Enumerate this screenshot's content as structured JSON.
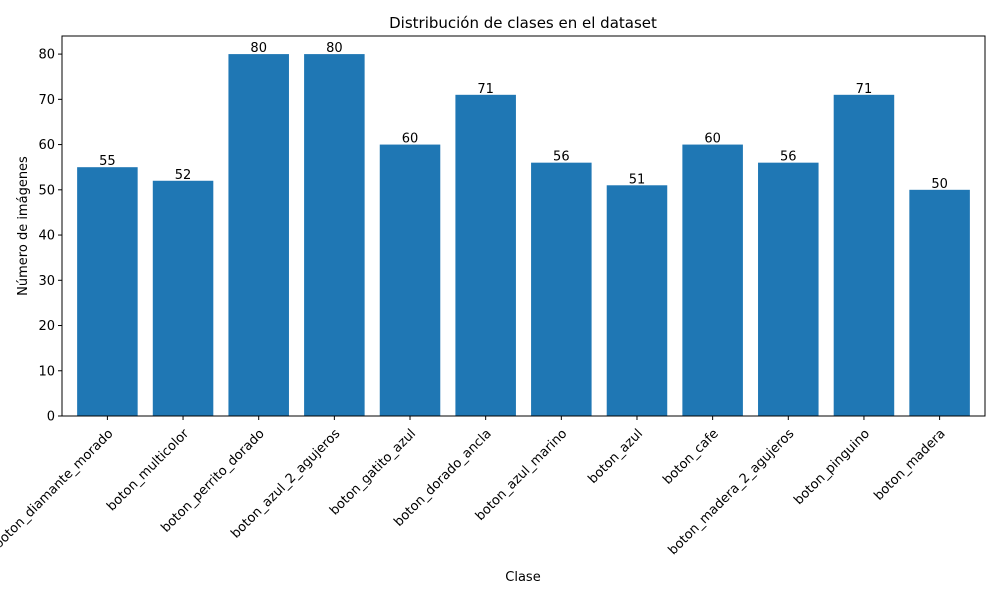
{
  "chart_data": {
    "type": "bar",
    "title": "Distribución de clases en el dataset",
    "xlabel": "Clase",
    "ylabel": "Número de imágenes",
    "categories": [
      "boton_diamante_morado",
      "boton_multicolor",
      "boton_perrito_dorado",
      "boton_azul_2_agujeros",
      "boton_gatito_azul",
      "boton_dorado_ancla",
      "boton_azul_marino",
      "boton_azul",
      "boton_cafe",
      "boton_madera_2_agujeros",
      "boton_pinguino",
      "boton_madera"
    ],
    "values": [
      55,
      52,
      80,
      80,
      60,
      71,
      56,
      51,
      60,
      56,
      71,
      50
    ],
    "data_labels": [
      "55",
      "52",
      "80",
      "80",
      "60",
      "71",
      "56",
      "51",
      "60",
      "56",
      "71",
      "50"
    ],
    "ylim": [
      0,
      84
    ],
    "yticks": [
      0,
      10,
      20,
      30,
      40,
      50,
      60,
      70,
      80
    ],
    "grid": false,
    "bar_color": "#1f77b4"
  }
}
